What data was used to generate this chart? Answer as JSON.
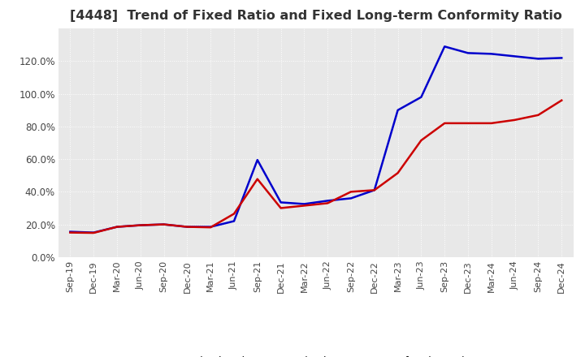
{
  "title": "[4448]  Trend of Fixed Ratio and Fixed Long-term Conformity Ratio",
  "title_fontsize": 11.5,
  "background_color": "#ffffff",
  "plot_bg_color": "#e8e8e8",
  "grid_color": "#ffffff",
  "fixed_ratio": {
    "label": "Fixed Ratio",
    "color": "#0000cc",
    "data": [
      [
        "Sep-19",
        0.155
      ],
      [
        "Dec-19",
        0.15
      ],
      [
        "Mar-20",
        0.185
      ],
      [
        "Jun-20",
        0.195
      ],
      [
        "Sep-20",
        0.2
      ],
      [
        "Dec-20",
        0.185
      ],
      [
        "Mar-21",
        0.185
      ],
      [
        "Jun-21",
        0.22
      ],
      [
        "Sep-21",
        0.595
      ],
      [
        "Dec-21",
        0.335
      ],
      [
        "Mar-22",
        0.325
      ],
      [
        "Jun-22",
        0.345
      ],
      [
        "Sep-22",
        0.36
      ],
      [
        "Dec-22",
        0.41
      ],
      [
        "Mar-23",
        0.9
      ],
      [
        "Jun-23",
        0.98
      ],
      [
        "Sep-23",
        1.29
      ],
      [
        "Dec-23",
        1.25
      ],
      [
        "Mar-24",
        1.245
      ],
      [
        "Jun-24",
        1.23
      ],
      [
        "Sep-24",
        1.215
      ],
      [
        "Dec-24",
        1.22
      ]
    ]
  },
  "fixed_lt_ratio": {
    "label": "Fixed Long-term Conformity Ratio",
    "color": "#cc0000",
    "data": [
      [
        "Sep-19",
        0.15
      ],
      [
        "Dec-19",
        0.148
      ],
      [
        "Mar-20",
        0.185
      ],
      [
        "Jun-20",
        0.195
      ],
      [
        "Sep-20",
        0.2
      ],
      [
        "Dec-20",
        0.185
      ],
      [
        "Mar-21",
        0.182
      ],
      [
        "Jun-21",
        0.265
      ],
      [
        "Sep-21",
        0.478
      ],
      [
        "Dec-21",
        0.3
      ],
      [
        "Mar-22",
        0.315
      ],
      [
        "Jun-22",
        0.33
      ],
      [
        "Sep-22",
        0.4
      ],
      [
        "Dec-22",
        0.41
      ],
      [
        "Mar-23",
        0.515
      ],
      [
        "Jun-23",
        0.715
      ],
      [
        "Sep-23",
        0.82
      ],
      [
        "Dec-23",
        0.82
      ],
      [
        "Mar-24",
        0.82
      ],
      [
        "Jun-24",
        0.84
      ],
      [
        "Sep-24",
        0.87
      ],
      [
        "Dec-24",
        0.96
      ]
    ]
  },
  "xtick_labels": [
    "Sep-19",
    "Dec-19",
    "Mar-20",
    "Jun-20",
    "Sep-20",
    "Dec-20",
    "Mar-21",
    "Jun-21",
    "Sep-21",
    "Dec-21",
    "Mar-22",
    "Jun-22",
    "Sep-22",
    "Dec-22",
    "Mar-23",
    "Jun-23",
    "Sep-23",
    "Dec-23",
    "Mar-24",
    "Jun-24",
    "Sep-24",
    "Dec-24"
  ],
  "yticks": [
    0.0,
    0.2,
    0.4,
    0.6,
    0.8,
    1.0,
    1.2
  ],
  "ytick_labels": [
    "0.0%",
    "20.0%",
    "40.0%",
    "60.0%",
    "80.0%",
    "100.0%",
    "120.0%"
  ],
  "ylim": [
    0.0,
    1.4
  ]
}
